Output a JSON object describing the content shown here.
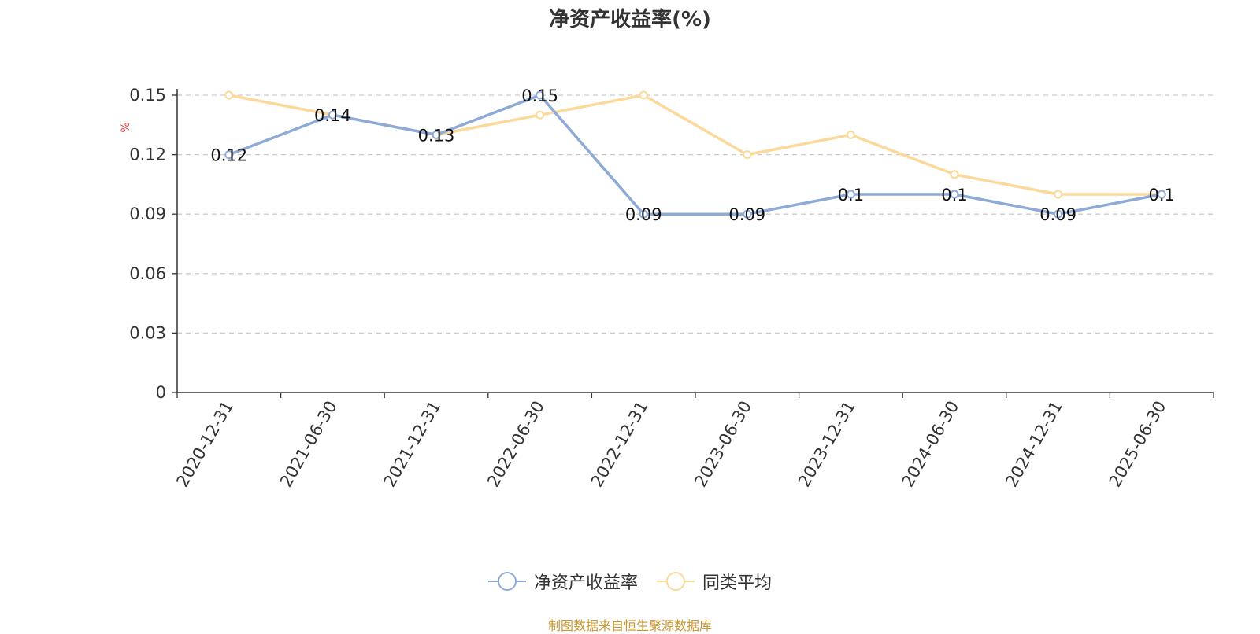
{
  "chart_data": {
    "type": "line",
    "title": "净资产收益率(%)",
    "ylabel": "%",
    "ylim": [
      0,
      0.15
    ],
    "yticks": [
      "0",
      "0.03",
      "0.06",
      "0.09",
      "0.12",
      "0.15"
    ],
    "categories": [
      "2020-12-31",
      "2021-06-30",
      "2021-12-31",
      "2022-06-30",
      "2022-12-31",
      "2023-06-30",
      "2023-12-31",
      "2024-06-30",
      "2024-12-31",
      "2025-06-30"
    ],
    "grid": true,
    "legend_position": "bottom-center",
    "series": [
      {
        "name": "净资产收益率",
        "color": "#8eaad6",
        "values": [
          0.12,
          0.14,
          0.13,
          0.15,
          0.09,
          0.09,
          0.1,
          0.1,
          0.09,
          0.1
        ],
        "labels": [
          "0.12",
          "0.14",
          "0.13",
          "0.15",
          "0.09",
          "0.09",
          "0.1",
          "0.1",
          "0.09",
          "0.1"
        ]
      },
      {
        "name": "同类平均",
        "color": "#fbd99a",
        "values": [
          0.15,
          0.14,
          0.13,
          0.14,
          0.15,
          0.12,
          0.13,
          0.11,
          0.1,
          0.1
        ]
      }
    ]
  },
  "source": "制图数据来自恒生聚源数据库"
}
